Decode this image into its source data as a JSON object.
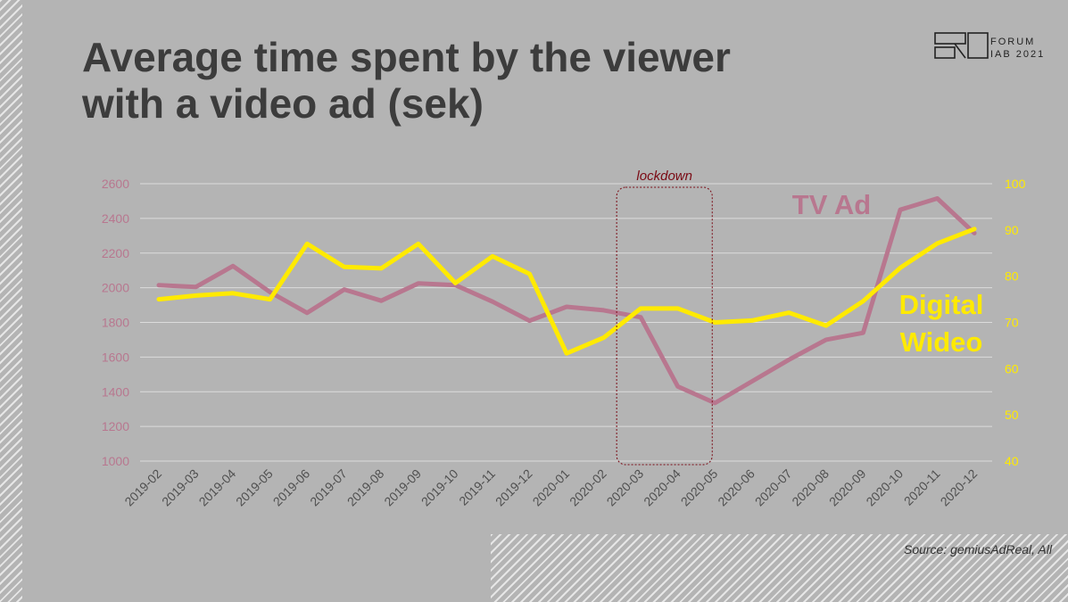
{
  "slide": {
    "title_line1": "Average time spent by the viewer",
    "title_line2": "with a video ad (sek)",
    "logo_line1": "FORUM",
    "logo_line2": "IAB 2021",
    "source": "Source: gemiusAdReal, All"
  },
  "chart_data": {
    "type": "line",
    "categories": [
      "2019-02",
      "2019-03",
      "2019-04",
      "2019-05",
      "2019-06",
      "2019-07",
      "2019-08",
      "2019-09",
      "2019-10",
      "2019-11",
      "2019-12",
      "2020-01",
      "2020-02",
      "2020-03",
      "2020-04",
      "2020-05",
      "2020-06",
      "2020-07",
      "2020-08",
      "2020-09",
      "2020-10",
      "2020-11",
      "2020-12"
    ],
    "series": [
      {
        "name": "TV Ad",
        "axis": "left",
        "color": "#b8778f",
        "values": [
          2015,
          2005,
          2125,
          1975,
          1855,
          1990,
          1925,
          2025,
          2015,
          1920,
          1810,
          1890,
          1870,
          1830,
          1430,
          1335,
          1460,
          1585,
          1700,
          1740,
          2450,
          2515,
          2315
        ]
      },
      {
        "name": "Digital Wideo",
        "axis": "right",
        "color": "#ffea00",
        "values": [
          75,
          75.8,
          76.3,
          75,
          87,
          82,
          81.7,
          87,
          78.5,
          84.3,
          80.5,
          63.3,
          66.7,
          73,
          73,
          70,
          70.4,
          72.1,
          69.3,
          74.6,
          81.8,
          87.1,
          90.2
        ]
      }
    ],
    "y_left": {
      "min": 1000,
      "max": 2600,
      "ticks": [
        1000,
        1200,
        1400,
        1600,
        1800,
        2000,
        2200,
        2400,
        2600
      ],
      "color": "#b8778f"
    },
    "y_right": {
      "min": 40,
      "max": 100,
      "ticks": [
        40,
        50,
        60,
        70,
        80,
        90,
        100
      ],
      "color": "#ffea00"
    },
    "grid": true,
    "annotation": {
      "label": "lockdown",
      "from": "2020-03",
      "to": "2020-05",
      "color": "#7a0a14"
    },
    "series_labels": {
      "tv": "TV Ad",
      "digital_line1": "Digital",
      "digital_line2": "Wideo"
    }
  }
}
